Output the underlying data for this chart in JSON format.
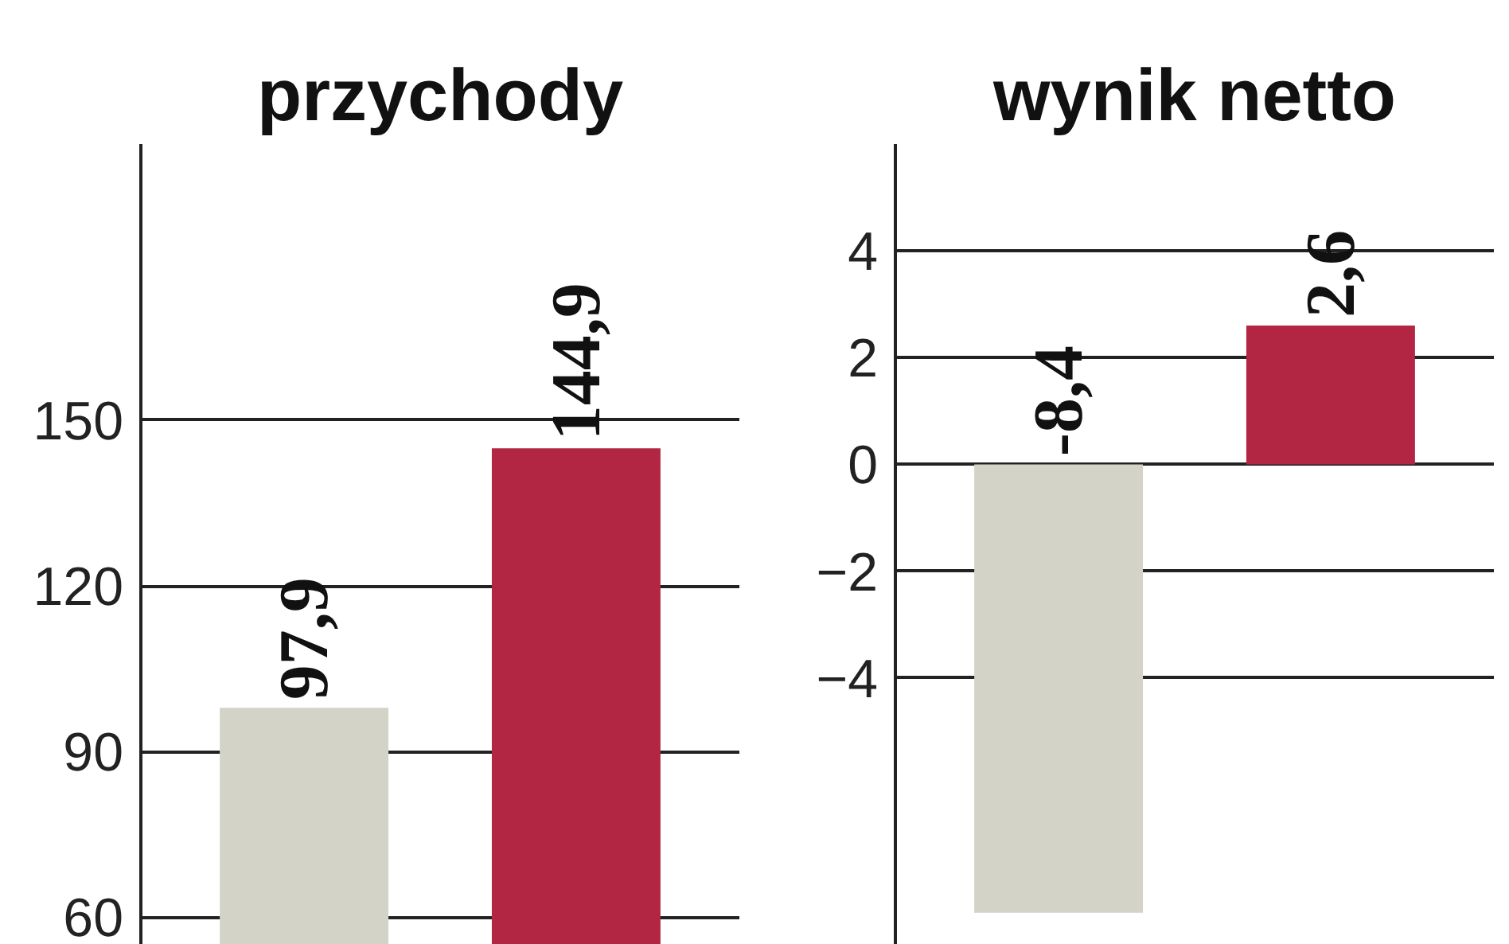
{
  "chart_data": [
    {
      "type": "bar",
      "title": "przychody",
      "categories": [
        null,
        null
      ],
      "values": [
        97.9,
        144.9
      ],
      "colors": [
        "#d3d3c8",
        "#b22543"
      ],
      "value_labels": [
        "97,9",
        "144,9"
      ],
      "ylim": [
        55,
        200
      ],
      "yticks": [
        60,
        90,
        120,
        150
      ],
      "grid": "y",
      "tick_labels": "y"
    },
    {
      "type": "bar",
      "title": "wynik netto",
      "categories": [
        null,
        null
      ],
      "values": [
        -8.4,
        2.6
      ],
      "colors": [
        "#d3d3c8",
        "#b22543"
      ],
      "value_labels": [
        "-8,4",
        "2,6"
      ],
      "ylim": [
        -9,
        6
      ],
      "yticks": [
        -4,
        -2,
        0,
        2,
        4
      ],
      "grid": "y",
      "tick_labels": "y"
    }
  ]
}
